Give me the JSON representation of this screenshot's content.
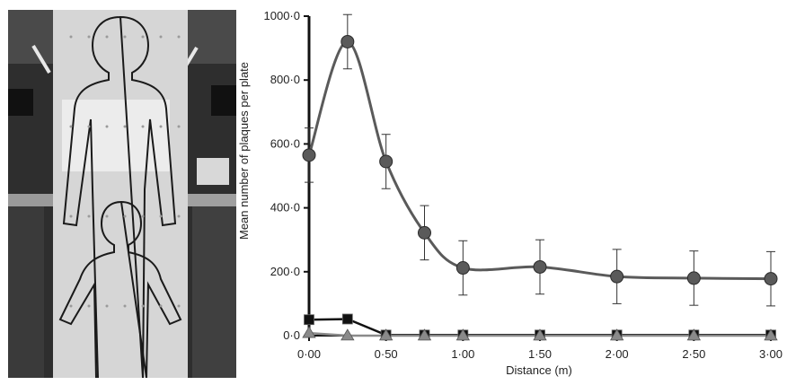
{
  "photo": {
    "description_icon": "photo-lab-silhouette-board"
  },
  "chart_data": {
    "type": "line",
    "xlabel": "Distance (m)",
    "ylabel": "Mean number of plaques per plate",
    "x": [
      0.0,
      0.25,
      0.5,
      0.75,
      1.0,
      1.5,
      2.0,
      2.5,
      3.0
    ],
    "x_tick_values": [
      0.0,
      0.5,
      1.0,
      1.5,
      2.0,
      2.5,
      3.0
    ],
    "x_tick_labels": [
      "0·00",
      "0·50",
      "1·00",
      "1·50",
      "2·00",
      "2·50",
      "3·00"
    ],
    "y_tick_values": [
      0,
      200,
      400,
      600,
      800,
      1000
    ],
    "y_tick_labels": [
      "0·0",
      "200·0",
      "400·0",
      "600·0",
      "800·0",
      "1000·0"
    ],
    "xlim": [
      0,
      3.0
    ],
    "ylim": [
      0,
      1000
    ],
    "grid": false,
    "series": [
      {
        "marker": "circle",
        "color": "#5a5a5a",
        "values": [
          565,
          920,
          545,
          322,
          212,
          215,
          185,
          180,
          178
        ],
        "error": [
          85,
          85,
          85,
          85,
          85,
          85,
          85,
          85,
          85
        ]
      },
      {
        "marker": "square",
        "color": "#111111",
        "values": [
          50,
          52,
          2,
          2,
          2,
          2,
          2,
          2,
          2
        ]
      },
      {
        "marker": "triangle",
        "color": "#8a8a8a",
        "values": [
          8,
          0,
          0,
          0,
          0,
          0,
          0,
          0,
          0
        ]
      }
    ]
  }
}
